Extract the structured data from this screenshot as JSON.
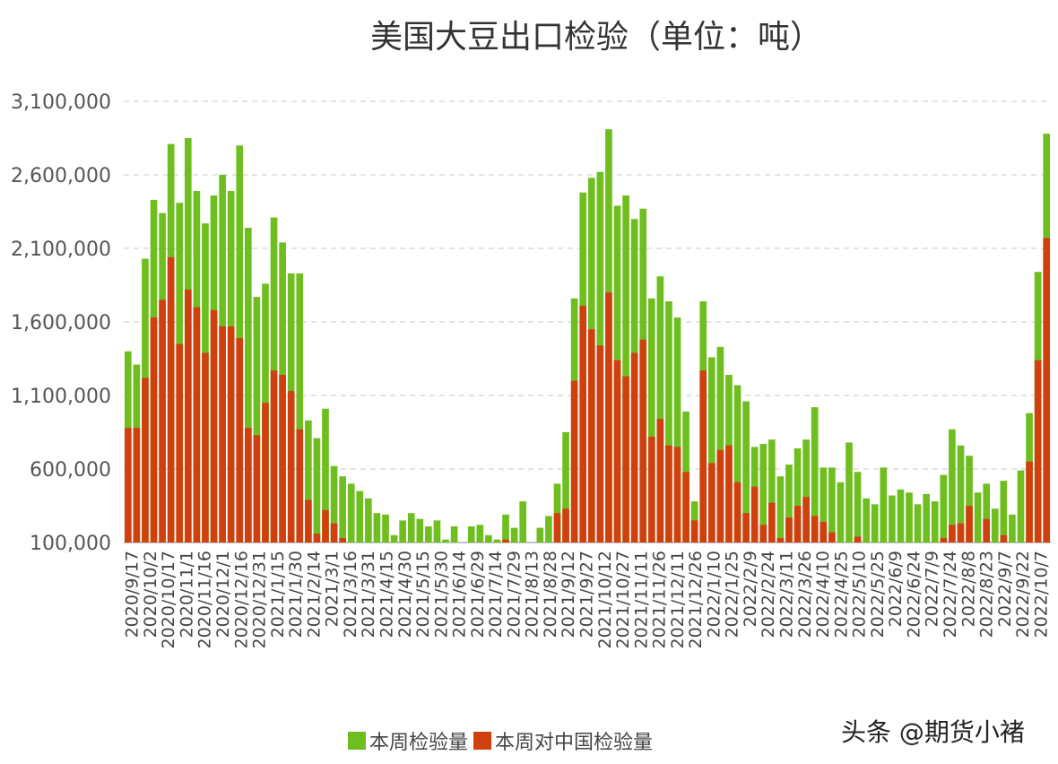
{
  "chart_data": {
    "type": "bar",
    "title": "美国大豆出口检验（单位：吨）",
    "ylim": [
      100000,
      3100000
    ],
    "yticks": [
      "3,100,000",
      "2,600,000",
      "2,100,000",
      "1,600,000",
      "1,100,000",
      "600,000",
      "100,000"
    ],
    "ytick_values": [
      3100000,
      2600000,
      2100000,
      1600000,
      1100000,
      600000,
      100000
    ],
    "grid": true,
    "legend_position": "bottom",
    "x_tick_labels": [
      "2020/9/17",
      "2020/10/2",
      "2020/10/17",
      "2020/11/1",
      "2020/11/16",
      "2020/12/1",
      "2020/12/16",
      "2020/12/31",
      "2021/1/15",
      "2021/1/30",
      "2021/2/14",
      "2021/3/1",
      "2021/3/16",
      "2021/3/31",
      "2021/4/15",
      "2021/4/30",
      "2021/5/15",
      "2021/5/30",
      "2021/6/14",
      "2021/6/29",
      "2021/7/14",
      "2021/7/29",
      "2021/8/13",
      "2021/8/28",
      "2021/9/12",
      "2021/9/27",
      "2021/10/12",
      "2021/10/27",
      "2021/11/11",
      "2021/11/26",
      "2021/12/11",
      "2021/12/26",
      "2022/1/10",
      "2022/1/25",
      "2022/2/9",
      "2022/2/24",
      "2022/3/11",
      "2022/3/26",
      "2022/4/10",
      "2022/4/25",
      "2022/5/10",
      "2022/5/25",
      "2022/6/9",
      "2022/6/24",
      "2022/7/9",
      "2022/7/24",
      "2022/8/8",
      "2022/8/23",
      "2022/9/7",
      "2022/9/22",
      "2022/10/7"
    ],
    "series": [
      {
        "name": "本周检验量",
        "color": "#6fbe1f",
        "values": [
          1400000,
          1310000,
          2030000,
          2430000,
          2340000,
          2810000,
          2410000,
          2850000,
          2490000,
          2270000,
          2460000,
          2600000,
          2490000,
          2800000,
          2240000,
          1770000,
          1860000,
          2310000,
          2140000,
          1930000,
          1930000,
          930000,
          810000,
          1010000,
          620000,
          550000,
          500000,
          450000,
          400000,
          300000,
          290000,
          150000,
          250000,
          300000,
          260000,
          210000,
          250000,
          120000,
          210000,
          0,
          210000,
          220000,
          150000,
          120000,
          290000,
          200000,
          380000,
          0,
          200000,
          280000,
          500000,
          850000,
          1760000,
          2480000,
          2580000,
          2620000,
          2910000,
          2390000,
          2460000,
          2300000,
          2370000,
          1760000,
          1910000,
          1740000,
          1630000,
          990000,
          380000,
          1740000,
          1360000,
          1430000,
          1240000,
          1170000,
          1060000,
          750000,
          770000,
          800000,
          550000,
          630000,
          740000,
          800000,
          1020000,
          610000,
          610000,
          510000,
          780000,
          580000,
          400000,
          360000,
          610000,
          420000,
          460000,
          440000,
          360000,
          430000,
          380000,
          560000,
          870000,
          760000,
          690000,
          440000,
          500000,
          330000,
          520000,
          290000,
          590000,
          980000,
          1940000,
          2880000
        ]
      },
      {
        "name": "本周对中国检验量",
        "color": "#d0400f",
        "values": [
          880000,
          880000,
          1220000,
          1630000,
          1750000,
          2040000,
          1450000,
          1820000,
          1700000,
          1390000,
          1680000,
          1570000,
          1570000,
          1490000,
          880000,
          830000,
          1050000,
          1270000,
          1240000,
          1130000,
          870000,
          390000,
          160000,
          320000,
          230000,
          130000,
          0,
          0,
          0,
          0,
          0,
          0,
          0,
          0,
          0,
          0,
          0,
          0,
          0,
          0,
          0,
          0,
          0,
          0,
          120000,
          0,
          0,
          0,
          0,
          0,
          300000,
          330000,
          1200000,
          1710000,
          1550000,
          1440000,
          1800000,
          1340000,
          1230000,
          1390000,
          1480000,
          820000,
          940000,
          760000,
          750000,
          580000,
          250000,
          1270000,
          640000,
          730000,
          760000,
          510000,
          300000,
          480000,
          220000,
          370000,
          130000,
          270000,
          350000,
          410000,
          280000,
          240000,
          170000,
          0,
          0,
          140000,
          0,
          0,
          0,
          0,
          0,
          0,
          0,
          0,
          0,
          130000,
          220000,
          230000,
          350000,
          0,
          260000,
          0,
          150000,
          0,
          0,
          650000,
          1340000,
          2170000
        ]
      }
    ]
  },
  "watermark": "头条 @期货小褚"
}
